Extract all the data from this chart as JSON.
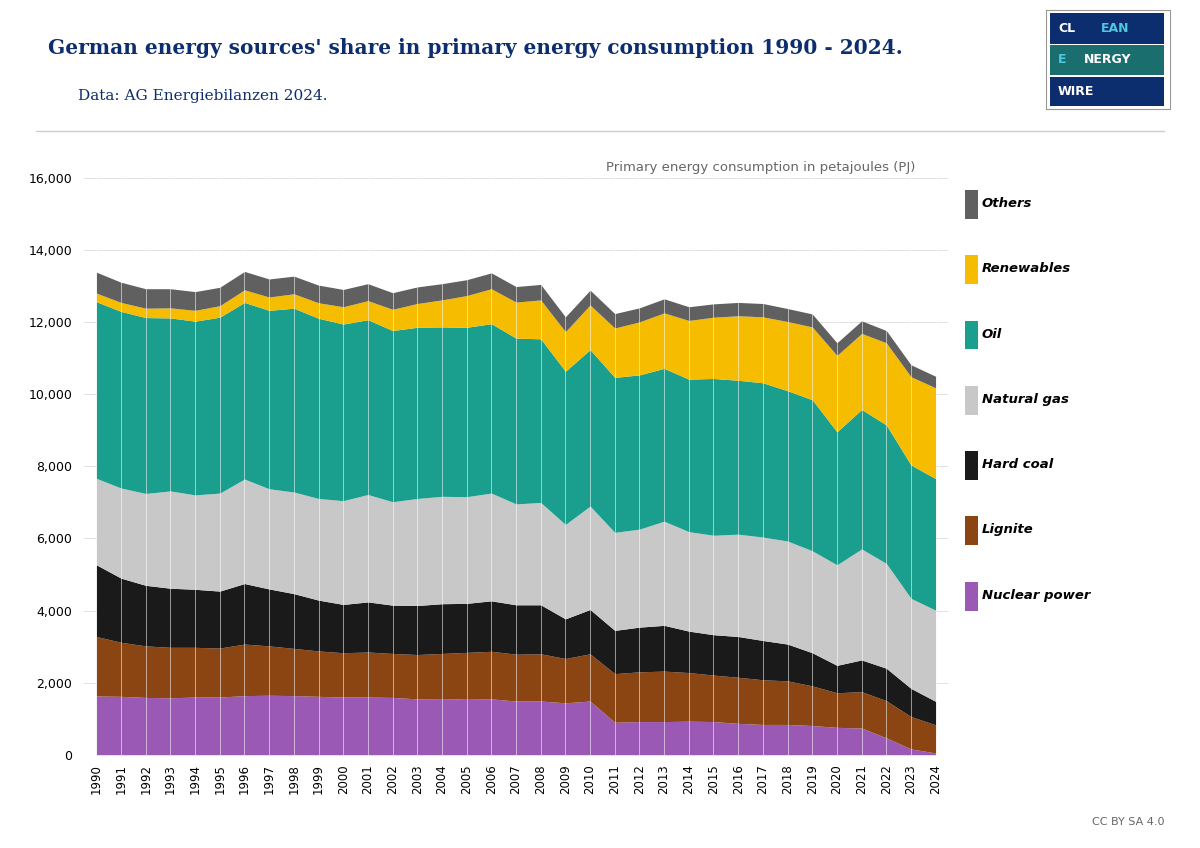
{
  "title": "German energy sources' share in primary energy consumption 1990 - 2024.",
  "subtitle": "Data: AG Energiebilanzen 2024.",
  "ylabel": "Primary energy consumption in petajoules (PJ)",
  "years": [
    1990,
    1991,
    1992,
    1993,
    1994,
    1995,
    1996,
    1997,
    1998,
    1999,
    2000,
    2001,
    2002,
    2003,
    2004,
    2005,
    2006,
    2007,
    2008,
    2009,
    2010,
    2011,
    2012,
    2013,
    2014,
    2015,
    2016,
    2017,
    2018,
    2019,
    2020,
    2021,
    2022,
    2023,
    2024
  ],
  "series": {
    "Nuclear power": [
      1630,
      1620,
      1590,
      1580,
      1600,
      1600,
      1640,
      1650,
      1640,
      1620,
      1600,
      1600,
      1590,
      1550,
      1540,
      1560,
      1550,
      1490,
      1490,
      1440,
      1490,
      900,
      920,
      920,
      930,
      920,
      870,
      840,
      840,
      810,
      760,
      740,
      470,
      160,
      50
    ],
    "Lignite": [
      1650,
      1500,
      1430,
      1400,
      1380,
      1360,
      1430,
      1370,
      1310,
      1260,
      1230,
      1250,
      1220,
      1230,
      1270,
      1280,
      1320,
      1300,
      1310,
      1230,
      1310,
      1350,
      1380,
      1400,
      1350,
      1290,
      1280,
      1240,
      1210,
      1100,
      960,
      1010,
      1030,
      900,
      780
    ],
    "Hard coal": [
      1990,
      1780,
      1680,
      1640,
      1610,
      1580,
      1680,
      1580,
      1520,
      1410,
      1340,
      1390,
      1340,
      1360,
      1380,
      1360,
      1400,
      1370,
      1360,
      1100,
      1230,
      1200,
      1240,
      1270,
      1150,
      1120,
      1130,
      1090,
      1020,
      920,
      760,
      880,
      900,
      780,
      650
    ],
    "Natural gas": [
      2400,
      2500,
      2550,
      2700,
      2620,
      2720,
      2900,
      2780,
      2820,
      2820,
      2880,
      2980,
      2870,
      2970,
      2980,
      2960,
      2990,
      2800,
      2840,
      2620,
      2870,
      2720,
      2720,
      2890,
      2760,
      2760,
      2840,
      2870,
      2860,
      2830,
      2790,
      3080,
      2910,
      2500,
      2530
    ],
    "Oil": [
      4900,
      4900,
      4880,
      4800,
      4820,
      4880,
      4900,
      4950,
      5100,
      5000,
      4900,
      4850,
      4750,
      4750,
      4700,
      4700,
      4700,
      4600,
      4540,
      4250,
      4340,
      4300,
      4280,
      4240,
      4230,
      4350,
      4270,
      4280,
      4170,
      4190,
      3690,
      3870,
      3840,
      3700,
      3650
    ],
    "Renewables": [
      240,
      250,
      260,
      280,
      300,
      320,
      350,
      370,
      400,
      430,
      480,
      530,
      590,
      660,
      750,
      880,
      970,
      1000,
      1080,
      1100,
      1240,
      1370,
      1470,
      1540,
      1630,
      1700,
      1790,
      1830,
      1920,
      2020,
      2120,
      2110,
      2280,
      2450,
      2520
    ],
    "Others": [
      580,
      560,
      540,
      530,
      520,
      510,
      510,
      500,
      490,
      490,
      480,
      470,
      460,
      460,
      450,
      440,
      440,
      430,
      430,
      410,
      410,
      400,
      390,
      390,
      380,
      370,
      370,
      370,
      360,
      360,
      350,
      350,
      340,
      330,
      320
    ]
  },
  "colors": {
    "Nuclear power": "#9b59b6",
    "Lignite": "#8B4513",
    "Hard coal": "#1a1a1a",
    "Natural gas": "#c8c8c8",
    "Oil": "#1a9e8e",
    "Renewables": "#f5bc00",
    "Others": "#606060"
  },
  "ylim": [
    0,
    16000
  ],
  "yticks": [
    0,
    2000,
    4000,
    6000,
    8000,
    10000,
    12000,
    14000,
    16000
  ],
  "title_color": "#0d2e6e",
  "subtitle_color": "#0d2e6e",
  "background_color": "#ffffff",
  "logo_row1_bg": "#0d2e6e",
  "logo_row2_bg": "#1a6e6e",
  "logo_row3_bg": "#0d2e6e",
  "logo_cl_color": "#ffffff",
  "logo_ean_color": "#4dc8e0",
  "logo_e_color": "#4dc8e0",
  "logo_nergy_color": "#ffffff",
  "logo_wire_color": "#ffffff"
}
